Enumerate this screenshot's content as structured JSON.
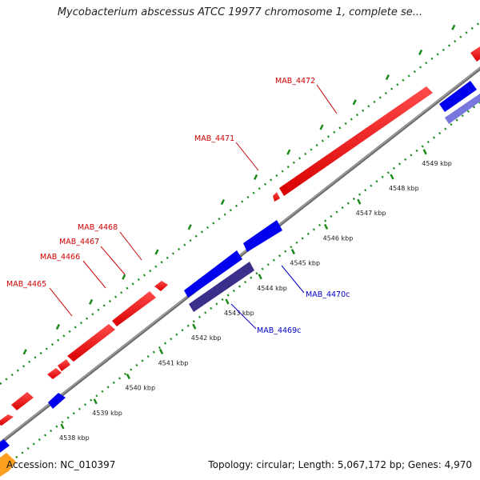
{
  "title": "Mycobacterium abscessus ATCC 19977 chromosome 1, complete se...",
  "footer": {
    "accession": "Accession: NC_010397",
    "stats": "Topology: circular; Length: 5,067,172 bp; Genes: 4,970"
  },
  "colors": {
    "forward_gene": "#ff0000",
    "reverse_gene": "#0000ee",
    "reverse_gene_alt": "#3a2f8a",
    "reverse_gene_faded": "#7777dd",
    "backbone": "#888888",
    "tick": "#1a8a1a",
    "forward_label": "#cc0000",
    "reverse_label": "#0000cc",
    "other_feature": "#ffa020"
  },
  "scale": {
    "unit": "kbp",
    "ticks": [
      "4538 kbp",
      "4539 kbp",
      "4540 kbp",
      "4541 kbp",
      "4542 kbp",
      "4543 kbp",
      "4544 kbp",
      "4545 kbp",
      "4546 kbp",
      "4547 kbp",
      "4548 kbp",
      "4549 kbp"
    ]
  },
  "genes": {
    "forward_labels": [
      "MAB_4465",
      "MAB_4466",
      "MAB_4467",
      "MAB_4468",
      "MAB_4471",
      "MAB_4472"
    ],
    "reverse_labels": [
      "MAB_4469c",
      "MAB_4470c"
    ]
  }
}
